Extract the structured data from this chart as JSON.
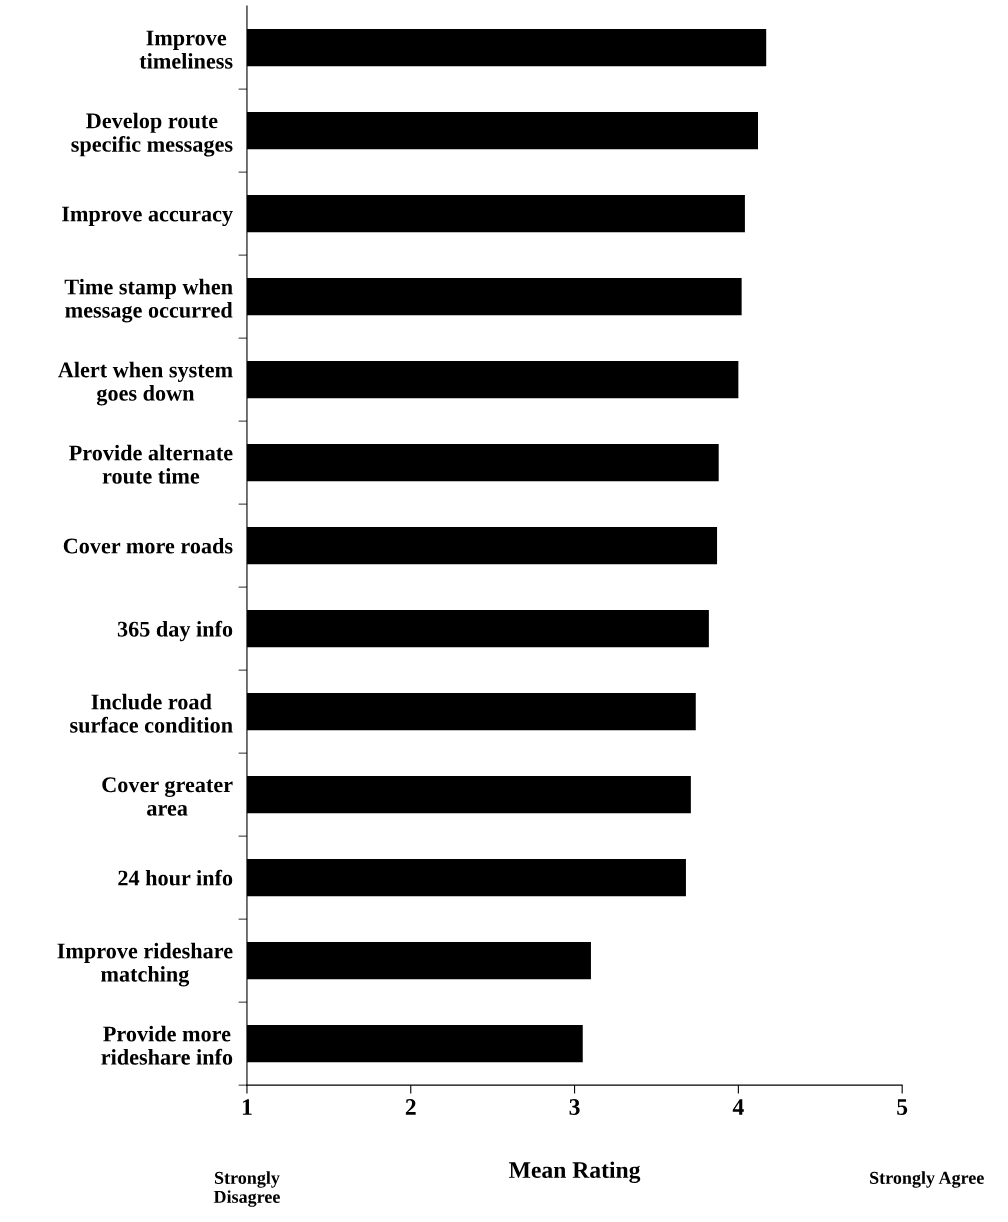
{
  "chart_data": {
    "type": "bar",
    "orientation": "horizontal",
    "xlabel": "Mean Rating",
    "categories": [
      "Improve\ntimeliness",
      "Develop route\nspecific messages",
      "Improve accuracy",
      "Time stamp when\nmessage occurred",
      "Alert when system\ngoes down",
      "Provide alternate\nroute time",
      "Cover more roads",
      "365 day info",
      "Include road\nsurface condition",
      "Cover greater\narea",
      "24 hour info",
      "Improve rideshare\nmatching",
      "Provide more\nrideshare info"
    ],
    "values": [
      4.17,
      4.12,
      4.04,
      4.02,
      4.0,
      3.88,
      3.87,
      3.82,
      3.74,
      3.71,
      3.68,
      3.1,
      3.05
    ],
    "color": "#000000",
    "xlim": [
      1,
      5
    ],
    "xticks": [
      1,
      2,
      3,
      4,
      5
    ],
    "annotations": [
      "Strongly\nDisagree",
      "Strongly Agree"
    ],
    "grid": false,
    "legend": false
  }
}
